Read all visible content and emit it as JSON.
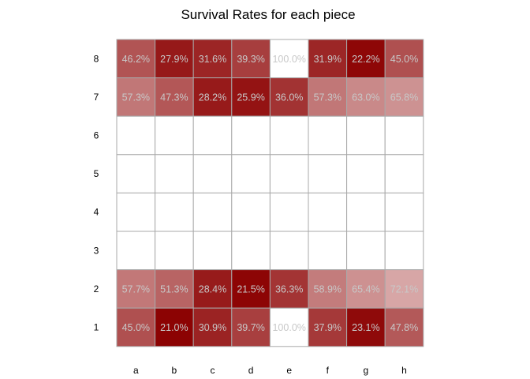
{
  "chart_data": {
    "type": "heatmap",
    "title": "Survival Rates for each piece",
    "xlabel": "",
    "ylabel": "",
    "x_categories": [
      "a",
      "b",
      "c",
      "d",
      "e",
      "f",
      "g",
      "h"
    ],
    "y_categories": [
      "8",
      "7",
      "6",
      "5",
      "4",
      "3",
      "2",
      "1"
    ],
    "value_range": [
      20,
      100
    ],
    "colors": {
      "low": "#8b0000",
      "high": "#ffffff",
      "label": "#c8c8c8",
      "grid": "#a9a9a9",
      "empty": "#ffffff"
    },
    "rows": [
      {
        "rank": "8",
        "values": [
          46.2,
          27.9,
          31.6,
          39.3,
          100.0,
          31.9,
          22.2,
          45.0
        ],
        "labels": [
          "46.2%",
          "27.9%",
          "31.6%",
          "39.3%",
          "100.0%",
          "31.9%",
          "22.2%",
          "45.0%"
        ]
      },
      {
        "rank": "7",
        "values": [
          57.3,
          47.3,
          28.2,
          25.9,
          36.0,
          57.3,
          63.0,
          65.8
        ],
        "labels": [
          "57.3%",
          "47.3%",
          "28.2%",
          "25.9%",
          "36.0%",
          "57.3%",
          "63.0%",
          "65.8%"
        ]
      },
      {
        "rank": "6",
        "values": [
          null,
          null,
          null,
          null,
          null,
          null,
          null,
          null
        ],
        "labels": [
          "",
          "",
          "",
          "",
          "",
          "",
          "",
          ""
        ]
      },
      {
        "rank": "5",
        "values": [
          null,
          null,
          null,
          null,
          null,
          null,
          null,
          null
        ],
        "labels": [
          "",
          "",
          "",
          "",
          "",
          "",
          "",
          ""
        ]
      },
      {
        "rank": "4",
        "values": [
          null,
          null,
          null,
          null,
          null,
          null,
          null,
          null
        ],
        "labels": [
          "",
          "",
          "",
          "",
          "",
          "",
          "",
          ""
        ]
      },
      {
        "rank": "3",
        "values": [
          null,
          null,
          null,
          null,
          null,
          null,
          null,
          null
        ],
        "labels": [
          "",
          "",
          "",
          "",
          "",
          "",
          "",
          ""
        ]
      },
      {
        "rank": "2",
        "values": [
          57.7,
          51.3,
          28.4,
          21.5,
          36.3,
          58.9,
          65.4,
          72.1
        ],
        "labels": [
          "57.7%",
          "51.3%",
          "28.4%",
          "21.5%",
          "36.3%",
          "58.9%",
          "65.4%",
          "72.1%"
        ]
      },
      {
        "rank": "1",
        "values": [
          45.0,
          21.0,
          30.9,
          39.7,
          100.0,
          37.9,
          23.1,
          47.8
        ],
        "labels": [
          "45.0%",
          "21.0%",
          "30.9%",
          "39.7%",
          "100.0%",
          "37.9%",
          "23.1%",
          "47.8%"
        ]
      }
    ]
  }
}
